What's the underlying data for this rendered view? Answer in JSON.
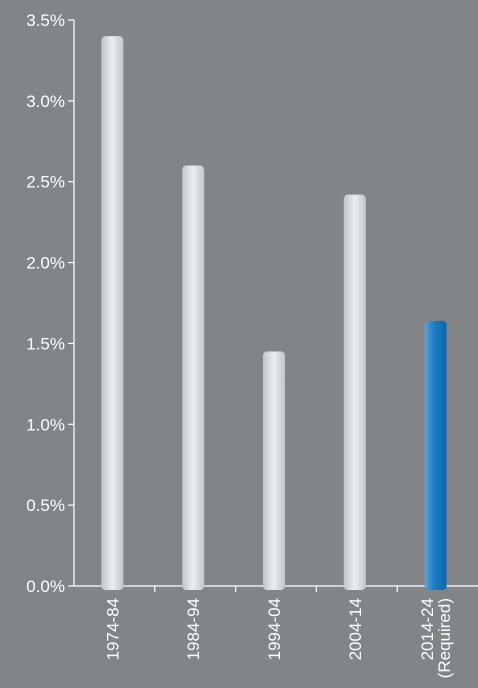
{
  "chart_data": {
    "type": "bar",
    "title": "",
    "xlabel": "",
    "ylabel": "",
    "categories": [
      [
        "1974-84"
      ],
      [
        "1984-94"
      ],
      [
        "1994-04"
      ],
      [
        "2004-14"
      ],
      [
        "2014-24",
        "(Required)"
      ]
    ],
    "values": [
      3.4,
      2.6,
      1.45,
      2.42,
      1.64
    ],
    "highlight_index": 4,
    "ylim": [
      0,
      3.5
    ],
    "yticks": [
      "0.0%",
      "0.5%",
      "1.0%",
      "1.5%",
      "2.0%",
      "2.5%",
      "3.0%",
      "3.5%"
    ],
    "grid": false,
    "colors": {
      "background": "#838486",
      "bar": "#dcdddf",
      "bar_highlight": "#1a7cc2",
      "axis": "#ffffff",
      "text": "#ffffff"
    }
  }
}
